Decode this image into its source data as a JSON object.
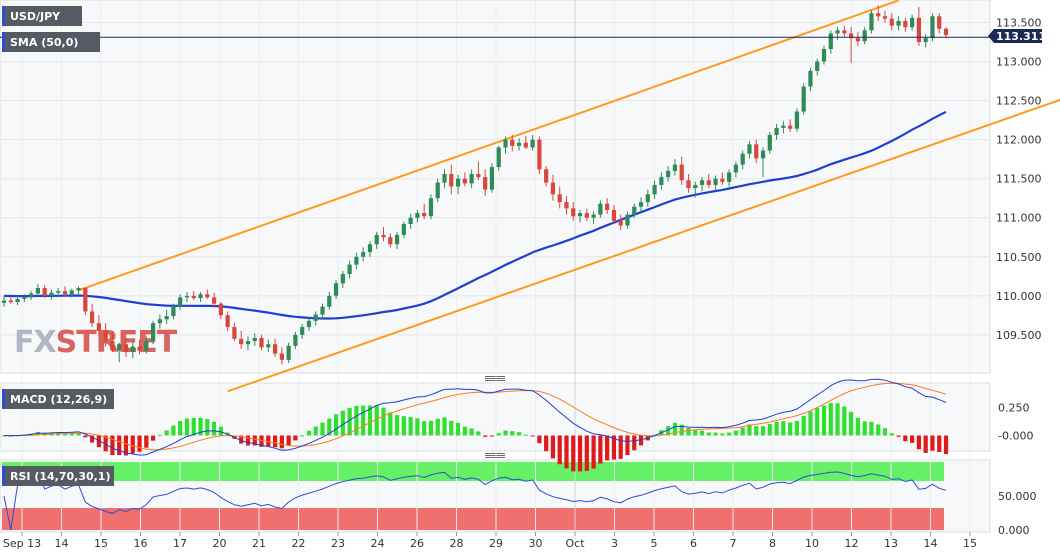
{
  "chart_data": [
    {
      "panel": "price",
      "type": "candlestick",
      "title": "USD/JPY",
      "indicator_label": "SMA (50,0)",
      "last_price": "113.311",
      "watermark": {
        "left": "FX",
        "right": "STREET"
      },
      "y_ticks": [
        "113.500",
        "113.000",
        "112.500",
        "112.000",
        "111.500",
        "111.000",
        "110.500",
        "110.000",
        "109.500"
      ],
      "x_labels": [
        "Sep 13",
        "14",
        "15",
        "16",
        "17",
        "20",
        "21",
        "22",
        "23",
        "24",
        "26",
        "28",
        "29",
        "30",
        "Oct",
        "3",
        "5",
        "6",
        "7",
        "8",
        "10",
        "12",
        "13",
        "14",
        "15"
      ],
      "ylim": [
        109.05,
        113.75
      ],
      "colors": {
        "up": "#2e8b57",
        "down": "#d9463b",
        "sma": "#1f3fd0",
        "channel": "#ff9a1f",
        "price_line": "#1a2a55"
      },
      "candles": [
        [
          109.91,
          109.99,
          109.86,
          109.94
        ],
        [
          109.94,
          109.98,
          109.9,
          109.92
        ],
        [
          109.92,
          110.0,
          109.88,
          109.96
        ],
        [
          109.96,
          110.02,
          109.92,
          109.98
        ],
        [
          109.98,
          110.06,
          109.95,
          110.03
        ],
        [
          110.03,
          110.15,
          110.0,
          110.1
        ],
        [
          110.1,
          110.14,
          109.97,
          110.0
        ],
        [
          110.0,
          110.08,
          109.95,
          110.04
        ],
        [
          110.04,
          110.1,
          109.99,
          110.06
        ],
        [
          110.06,
          110.12,
          110.0,
          110.02
        ],
        [
          110.02,
          110.09,
          109.98,
          110.07
        ],
        [
          110.07,
          110.12,
          110.02,
          110.1
        ],
        [
          110.1,
          110.11,
          109.75,
          109.8
        ],
        [
          109.8,
          109.9,
          109.6,
          109.65
        ],
        [
          109.65,
          109.75,
          109.48,
          109.55
        ],
        [
          109.55,
          109.65,
          109.35,
          109.42
        ],
        [
          109.42,
          109.55,
          109.28,
          109.3
        ],
        [
          109.3,
          109.4,
          109.15,
          109.38
        ],
        [
          109.38,
          109.46,
          109.22,
          109.28
        ],
        [
          109.28,
          109.42,
          109.2,
          109.35
        ],
        [
          109.35,
          109.44,
          109.25,
          109.3
        ],
        [
          109.3,
          109.48,
          109.26,
          109.42
        ],
        [
          109.42,
          109.68,
          109.38,
          109.65
        ],
        [
          109.65,
          109.76,
          109.58,
          109.7
        ],
        [
          109.7,
          109.82,
          109.64,
          109.74
        ],
        [
          109.74,
          109.9,
          109.7,
          109.86
        ],
        [
          109.86,
          110.02,
          109.82,
          109.98
        ],
        [
          109.98,
          110.05,
          109.92,
          110.0
        ],
        [
          110.0,
          110.06,
          109.95,
          109.97
        ],
        [
          109.97,
          110.05,
          109.92,
          110.02
        ],
        [
          110.02,
          110.08,
          109.96,
          109.98
        ],
        [
          109.98,
          110.04,
          109.85,
          109.9
        ],
        [
          109.9,
          109.92,
          109.7,
          109.75
        ],
        [
          109.75,
          109.8,
          109.55,
          109.6
        ],
        [
          109.6,
          109.65,
          109.42,
          109.45
        ],
        [
          109.45,
          109.55,
          109.32,
          109.38
        ],
        [
          109.38,
          109.48,
          109.3,
          109.42
        ],
        [
          109.42,
          109.52,
          109.36,
          109.46
        ],
        [
          109.46,
          109.5,
          109.3,
          109.34
        ],
        [
          109.34,
          109.44,
          109.28,
          109.38
        ],
        [
          109.38,
          109.45,
          109.22,
          109.26
        ],
        [
          109.26,
          109.34,
          109.12,
          109.18
        ],
        [
          109.18,
          109.4,
          109.14,
          109.36
        ],
        [
          109.36,
          109.54,
          109.32,
          109.5
        ],
        [
          109.5,
          109.64,
          109.45,
          109.6
        ],
        [
          109.6,
          109.72,
          109.55,
          109.68
        ],
        [
          109.68,
          109.8,
          109.62,
          109.76
        ],
        [
          109.76,
          109.9,
          109.7,
          109.86
        ],
        [
          109.86,
          110.05,
          109.82,
          110.0
        ],
        [
          110.0,
          110.2,
          109.96,
          110.16
        ],
        [
          110.16,
          110.32,
          110.1,
          110.28
        ],
        [
          110.28,
          110.45,
          110.22,
          110.4
        ],
        [
          110.4,
          110.55,
          110.34,
          110.5
        ],
        [
          110.5,
          110.62,
          110.44,
          110.56
        ],
        [
          110.56,
          110.7,
          110.5,
          110.66
        ],
        [
          110.66,
          110.82,
          110.6,
          110.78
        ],
        [
          110.78,
          110.88,
          110.7,
          110.75
        ],
        [
          110.75,
          110.8,
          110.62,
          110.66
        ],
        [
          110.66,
          110.82,
          110.6,
          110.78
        ],
        [
          110.78,
          110.95,
          110.74,
          110.92
        ],
        [
          110.92,
          111.05,
          110.86,
          111.0
        ],
        [
          111.0,
          111.1,
          110.94,
          111.06
        ],
        [
          111.06,
          111.18,
          110.98,
          111.02
        ],
        [
          111.02,
          111.3,
          110.98,
          111.25
        ],
        [
          111.25,
          111.5,
          111.2,
          111.45
        ],
        [
          111.45,
          111.62,
          111.38,
          111.56
        ],
        [
          111.56,
          111.68,
          111.3,
          111.4
        ],
        [
          111.4,
          111.55,
          111.3,
          111.5
        ],
        [
          111.5,
          111.58,
          111.4,
          111.44
        ],
        [
          111.44,
          111.62,
          111.38,
          111.56
        ],
        [
          111.56,
          111.72,
          111.48,
          111.52
        ],
        [
          111.52,
          111.62,
          111.28,
          111.36
        ],
        [
          111.36,
          111.7,
          111.32,
          111.65
        ],
        [
          111.65,
          111.92,
          111.6,
          111.9
        ],
        [
          111.9,
          112.04,
          111.82,
          112.0
        ],
        [
          112.0,
          112.06,
          111.85,
          111.92
        ],
        [
          111.92,
          112.02,
          111.86,
          111.96
        ],
        [
          111.96,
          112.05,
          111.88,
          111.9
        ],
        [
          111.9,
          112.06,
          111.86,
          112.0
        ],
        [
          112.0,
          112.04,
          111.56,
          111.62
        ],
        [
          111.62,
          111.66,
          111.4,
          111.45
        ],
        [
          111.45,
          111.55,
          111.22,
          111.3
        ],
        [
          111.3,
          111.4,
          111.12,
          111.2
        ],
        [
          111.2,
          111.28,
          111.04,
          111.12
        ],
        [
          111.12,
          111.2,
          110.96,
          111.02
        ],
        [
          111.02,
          111.1,
          110.94,
          111.06
        ],
        [
          111.06,
          111.12,
          110.96,
          111.0
        ],
        [
          111.0,
          111.08,
          110.92,
          111.04
        ],
        [
          111.04,
          111.22,
          111.0,
          111.18
        ],
        [
          111.18,
          111.25,
          111.05,
          111.1
        ],
        [
          111.1,
          111.16,
          110.92,
          110.96
        ],
        [
          110.96,
          111.04,
          110.84,
          110.9
        ],
        [
          110.9,
          111.08,
          110.86,
          111.04
        ],
        [
          111.04,
          111.18,
          111.0,
          111.14
        ],
        [
          111.14,
          111.26,
          111.08,
          111.2
        ],
        [
          111.2,
          111.36,
          111.14,
          111.3
        ],
        [
          111.3,
          111.48,
          111.24,
          111.42
        ],
        [
          111.42,
          111.58,
          111.36,
          111.52
        ],
        [
          111.52,
          111.66,
          111.46,
          111.6
        ],
        [
          111.6,
          111.75,
          111.54,
          111.68
        ],
        [
          111.68,
          111.78,
          111.42,
          111.48
        ],
        [
          111.48,
          111.56,
          111.32,
          111.38
        ],
        [
          111.38,
          111.46,
          111.26,
          111.42
        ],
        [
          111.42,
          111.52,
          111.34,
          111.48
        ],
        [
          111.48,
          111.56,
          111.38,
          111.42
        ],
        [
          111.42,
          111.54,
          111.36,
          111.5
        ],
        [
          111.5,
          111.58,
          111.42,
          111.46
        ],
        [
          111.46,
          111.62,
          111.4,
          111.58
        ],
        [
          111.58,
          111.72,
          111.52,
          111.68
        ],
        [
          111.68,
          111.86,
          111.62,
          111.82
        ],
        [
          111.82,
          111.98,
          111.76,
          111.94
        ],
        [
          111.94,
          112.0,
          111.7,
          111.76
        ],
        [
          111.76,
          111.9,
          111.52,
          111.86
        ],
        [
          111.86,
          112.1,
          111.82,
          112.06
        ],
        [
          112.06,
          112.2,
          112.0,
          112.15
        ],
        [
          112.15,
          112.24,
          112.08,
          112.18
        ],
        [
          112.18,
          112.26,
          112.1,
          112.14
        ],
        [
          112.14,
          112.4,
          112.1,
          112.36
        ],
        [
          112.36,
          112.72,
          112.32,
          112.68
        ],
        [
          112.68,
          112.92,
          112.62,
          112.88
        ],
        [
          112.88,
          113.04,
          112.82,
          113.0
        ],
        [
          113.0,
          113.2,
          112.96,
          113.16
        ],
        [
          113.16,
          113.4,
          113.1,
          113.36
        ],
        [
          113.36,
          113.44,
          113.28,
          113.4
        ],
        [
          113.4,
          113.46,
          113.32,
          113.36
        ],
        [
          113.36,
          113.44,
          112.98,
          113.3
        ],
        [
          113.3,
          113.38,
          113.2,
          113.26
        ],
        [
          113.26,
          113.44,
          113.22,
          113.4
        ],
        [
          113.4,
          113.66,
          113.36,
          113.62
        ],
        [
          113.62,
          113.72,
          113.52,
          113.58
        ],
        [
          113.58,
          113.65,
          113.5,
          113.55
        ],
        [
          113.55,
          113.62,
          113.4,
          113.46
        ],
        [
          113.46,
          113.58,
          113.4,
          113.52
        ],
        [
          113.52,
          113.56,
          113.38,
          113.44
        ],
        [
          113.44,
          113.6,
          113.4,
          113.56
        ],
        [
          113.56,
          113.7,
          113.2,
          113.25
        ],
        [
          113.25,
          113.35,
          113.18,
          113.3
        ],
        [
          113.3,
          113.62,
          113.26,
          113.58
        ],
        [
          113.58,
          113.62,
          113.36,
          113.42
        ],
        [
          113.42,
          113.44,
          113.3,
          113.34
        ]
      ]
    },
    {
      "panel": "macd",
      "type": "line",
      "title": "MACD (12,26,9)",
      "y_ticks": [
        "0.250",
        "-0.000"
      ],
      "ylim": [
        -0.12,
        0.44
      ],
      "colors": {
        "macd": "#1f3fd0",
        "signal": "#ff7a1a",
        "hist_pos": "#2fe02f",
        "hist_neg": "#e01a1a"
      }
    },
    {
      "panel": "rsi",
      "type": "line",
      "title": "RSI (14,70,30,1)",
      "y_ticks": [
        "50.000",
        "0.000"
      ],
      "ylim": [
        0,
        100
      ],
      "colors": {
        "rsi": "#2a4fd6",
        "overbought": "#66f066",
        "oversold": "#f07070"
      }
    }
  ]
}
